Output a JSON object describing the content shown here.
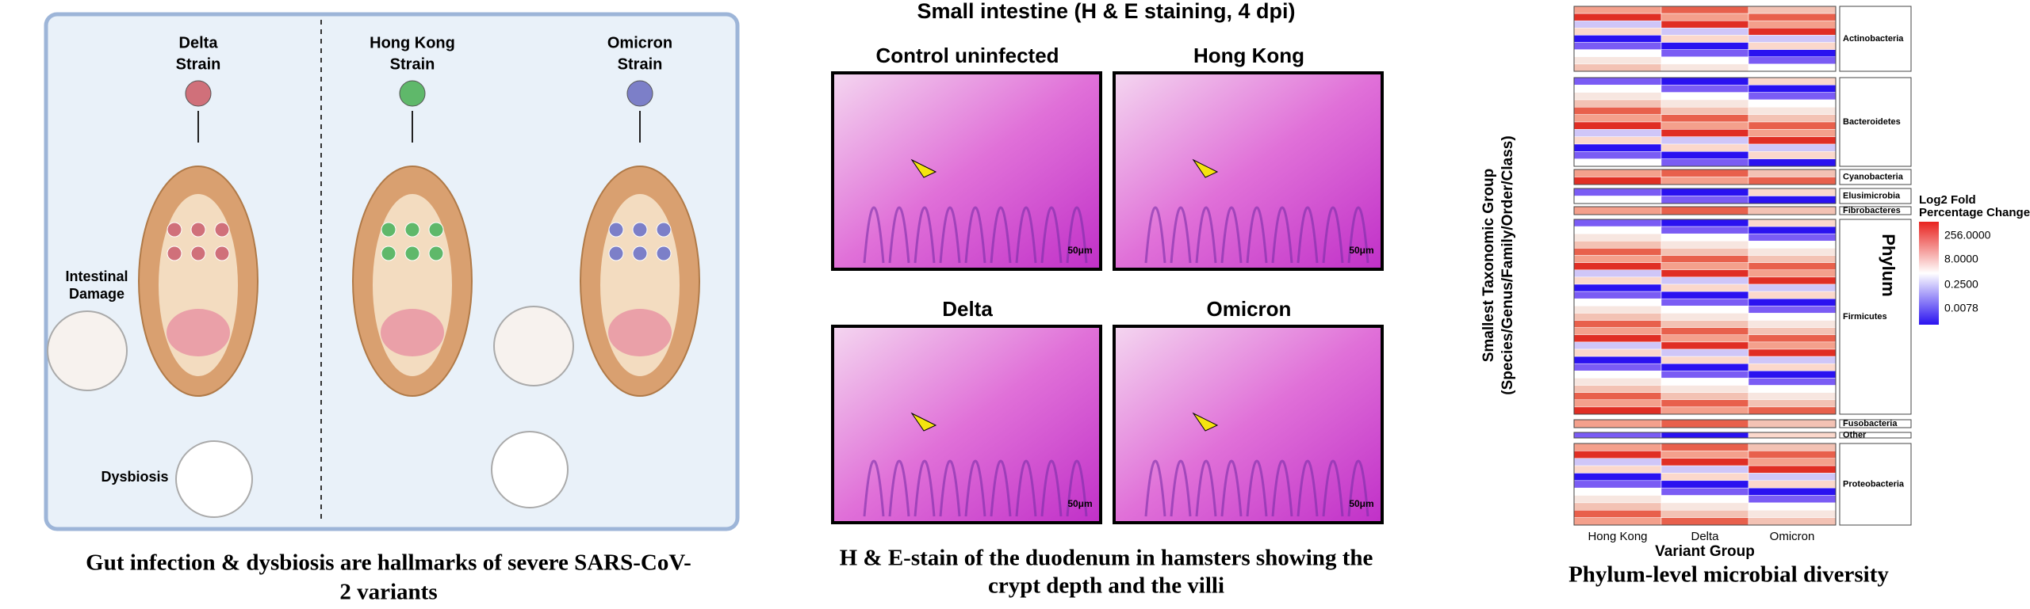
{
  "left": {
    "strains": [
      {
        "line1": "Delta",
        "line2": "Strain"
      },
      {
        "line1": "Hong Kong",
        "line2": "Strain"
      },
      {
        "line1": "Omicron",
        "line2": "Strain"
      }
    ],
    "intestinal_damage": [
      "Intestinal",
      "Damage"
    ],
    "dysbiosis": "Dysbiosis",
    "caption": [
      "Gut infection & dysbiosis are hallmarks of severe SARS-CoV-",
      "2 variants"
    ]
  },
  "middle": {
    "title": "Small intestine (H & E staining, 4 dpi)",
    "panels": [
      {
        "label": "Control uninfected",
        "scale": "50μm"
      },
      {
        "label": "Hong Kong",
        "scale": "50μm"
      },
      {
        "label": "Delta",
        "scale": "50μm"
      },
      {
        "label": "Omicron",
        "scale": "50μm"
      }
    ],
    "caption": [
      "H & E-stain of the duodenum in hamsters showing the",
      "crypt depth and the villi"
    ]
  },
  "right": {
    "y_axis_label": [
      "Smallest Taxonomic Group",
      "(Species/Genus/Family/Order/Class)"
    ],
    "phylum_label": "Phylum",
    "groups": [
      "Actinobacteria",
      "Bacteroidetes",
      "Cyanobacteria",
      "Elusimicrobia",
      "Fibrobacteres",
      "Firmicutes",
      "Fusobacteria",
      "Other",
      "Proteobacteria"
    ],
    "columns": [
      "Hong Kong",
      "Delta",
      "Omicron"
    ],
    "x_axis_label": "Variant Group",
    "legend_title": [
      "Log2 Fold",
      "Percentage Change"
    ],
    "legend_ticks": [
      "256.0000",
      "8.0000",
      "0.2500",
      "0.0078"
    ],
    "caption": "Phylum-level microbial diversity"
  }
}
